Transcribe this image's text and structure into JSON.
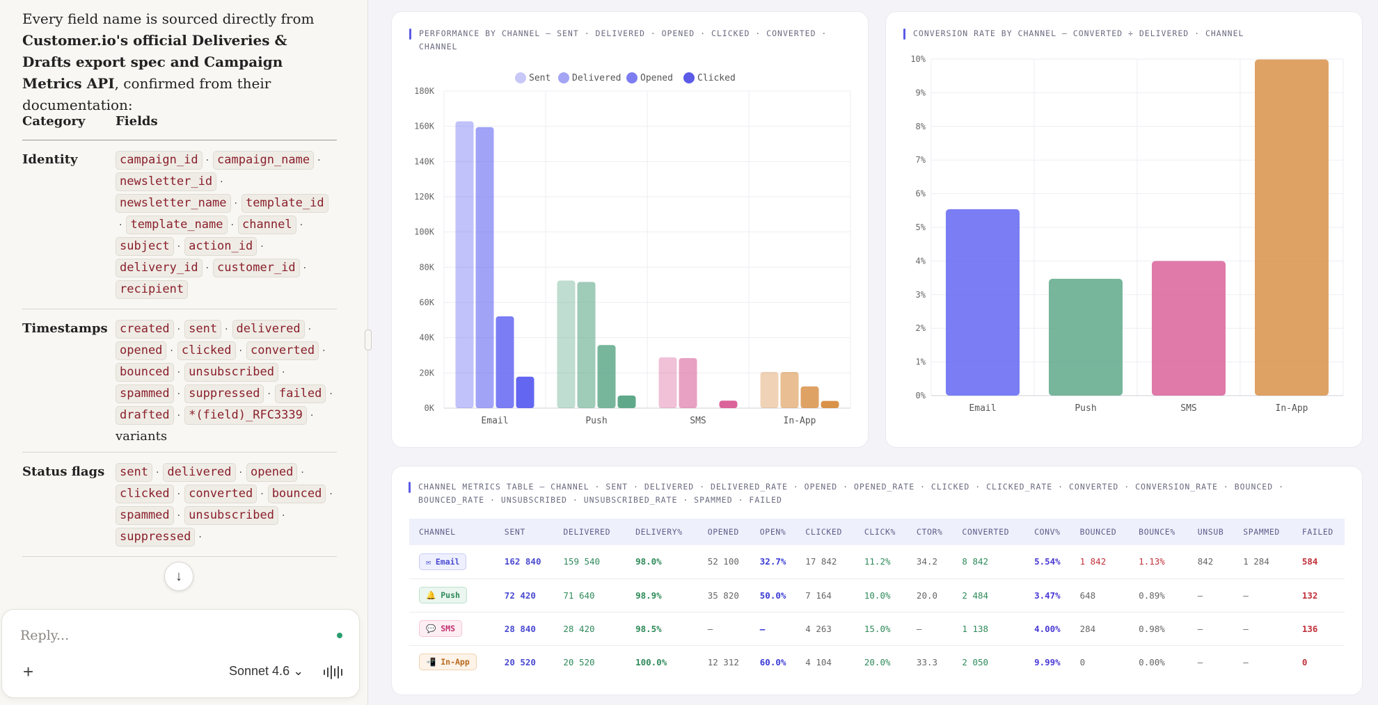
{
  "intro": {
    "pre": "Every field name is sourced directly from ",
    "bold": "Customer.io's official Deliveries & Drafts export spec and Campaign Metrics API",
    "post": ", confirmed from their documentation:"
  },
  "field_table": {
    "headers": [
      "Category",
      "Fields"
    ],
    "rows": [
      {
        "category": "Identity",
        "fields": [
          "campaign_id",
          "campaign_name",
          "newsletter_id",
          "newsletter_name",
          "template_id",
          "template_name",
          "channel",
          "subject",
          "action_id",
          "delivery_id",
          "customer_id",
          "recipient"
        ],
        "note": ""
      },
      {
        "category": "Timestamps",
        "fields": [
          "created",
          "sent",
          "delivered",
          "opened",
          "clicked",
          "converted",
          "bounced",
          "unsubscribed",
          "spammed",
          "suppressed",
          "failed",
          "drafted",
          "*(field)_RFC3339"
        ],
        "note": "variants"
      },
      {
        "category": "Status flags",
        "fields": [
          "sent",
          "delivered",
          "opened",
          "clicked",
          "converted",
          "bounced",
          "spammed",
          "unsubscribed",
          "suppressed"
        ],
        "note": ""
      }
    ]
  },
  "composer": {
    "placeholder": "Reply...",
    "model": "Sonnet 4.6 ⌄"
  },
  "colors": {
    "email": "#6366f1",
    "push": "#5fa98a",
    "sms": "#d9639a",
    "inapp": "#d9924a"
  },
  "chart_perf": {
    "title_line1": "PERFORMANCE BY CHANNEL — SENT · DELIVERED · OPENED · CLICKED · CONVERTED ·",
    "title_line2": "CHANNEL"
  },
  "chart_conv": {
    "title": "CONVERSION RATE BY CHANNEL — CONVERTED ÷ DELIVERED · CHANNEL"
  },
  "chart_data": [
    {
      "type": "bar",
      "categories": [
        "Email",
        "Push",
        "SMS",
        "In-App"
      ],
      "series": [
        {
          "name": "Sent",
          "values": [
            162840,
            72420,
            28840,
            20520
          ]
        },
        {
          "name": "Delivered",
          "values": [
            159540,
            71640,
            28420,
            20520
          ]
        },
        {
          "name": "Opened",
          "values": [
            52100,
            35820,
            0,
            12312
          ]
        },
        {
          "name": "Clicked",
          "values": [
            17842,
            7164,
            4263,
            4104
          ]
        }
      ],
      "yticks": [
        "0K",
        "20K",
        "40K",
        "60K",
        "80K",
        "100K",
        "120K",
        "140K",
        "160K",
        "180K"
      ],
      "ylim": [
        0,
        180000
      ],
      "legend": "top-center",
      "grid": true
    },
    {
      "type": "bar",
      "categories": [
        "Email",
        "Push",
        "SMS",
        "In-App"
      ],
      "values": [
        5.54,
        3.47,
        4.0,
        9.99
      ],
      "yticks": [
        "0%",
        "1%",
        "2%",
        "3%",
        "4%",
        "5%",
        "6%",
        "7%",
        "8%",
        "9%",
        "10%"
      ],
      "ylim": [
        0,
        10
      ],
      "grid": true
    }
  ],
  "metrics_table": {
    "title_line1": "CHANNEL METRICS TABLE — CHANNEL · SENT · DELIVERED · DELIVERED_RATE · OPENED · OPENED_RATE · CLICKED · CLICKED_RATE · CONVERTED · CONVERSION_RATE · BOUNCED ·",
    "title_line2": "BOUNCED_RATE · UNSUBSCRIBED · UNSUBSCRIBED_RATE · SPAMMED · FAILED",
    "headers": [
      "CHANNEL",
      "SENT",
      "DELIVERED",
      "DELIVERY%",
      "OPENED",
      "OPEN%",
      "CLICKED",
      "CLICK%",
      "CTOR%",
      "CONVERTED",
      "CONV%",
      "BOUNCED",
      "BOUNCE%",
      "UNSUB",
      "SPAMMED",
      "FAILED"
    ],
    "rows": [
      {
        "channel": "✉ Email",
        "sent": "162 840",
        "delivered": "159 540",
        "delivery": "98.0%",
        "opened": "52 100",
        "open": "32.7%",
        "clicked": "17 842",
        "click": "11.2%",
        "ctor": "34.2",
        "converted": "8 842",
        "conv": "5.54%",
        "bounced": "1 842",
        "bounce": "1.13%",
        "unsub": "842",
        "spammed": "1 284",
        "failed": "584"
      },
      {
        "channel": "🔔 Push",
        "sent": "72 420",
        "delivered": "71 640",
        "delivery": "98.9%",
        "opened": "35 820",
        "open": "50.0%",
        "clicked": "7 164",
        "click": "10.0%",
        "ctor": "20.0",
        "converted": "2 484",
        "conv": "3.47%",
        "bounced": "648",
        "bounce": "0.89%",
        "unsub": "—",
        "spammed": "—",
        "failed": "132"
      },
      {
        "channel": "💬 SMS",
        "sent": "28 840",
        "delivered": "28 420",
        "delivery": "98.5%",
        "opened": "—",
        "open": "—",
        "clicked": "4 263",
        "click": "15.0%",
        "ctor": "—",
        "converted": "1 138",
        "conv": "4.00%",
        "bounced": "284",
        "bounce": "0.98%",
        "unsub": "—",
        "spammed": "—",
        "failed": "136"
      },
      {
        "channel": "📲 In-App",
        "sent": "20 520",
        "delivered": "20 520",
        "delivery": "100.0%",
        "opened": "12 312",
        "open": "60.0%",
        "clicked": "4 104",
        "click": "20.0%",
        "ctor": "33.3",
        "converted": "2 050",
        "conv": "9.99%",
        "bounced": "0",
        "bounce": "0.00%",
        "unsub": "—",
        "spammed": "—",
        "failed": "0"
      }
    ]
  }
}
